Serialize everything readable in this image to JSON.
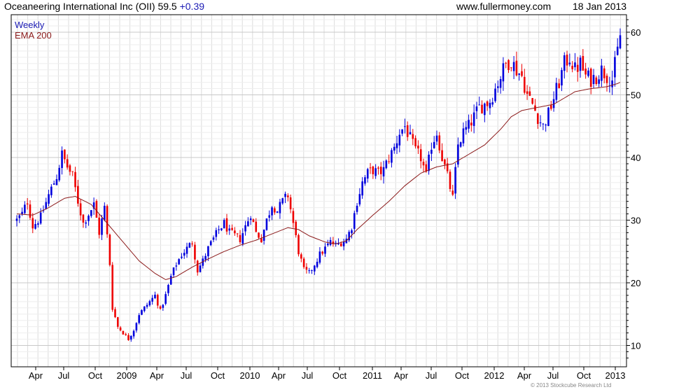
{
  "header": {
    "name": "Oceaneering International Inc (OII)",
    "price": "59.5",
    "change": "+0.39",
    "site": "www.fullermoney.com",
    "date": "18 Jan 2013"
  },
  "legend": {
    "weekly": "Weekly",
    "ema": "EMA 200"
  },
  "copyright": "© 2013 Stockcube Research Ltd",
  "colors": {
    "up": "#0000dd",
    "down": "#ee0000",
    "ema": "#8b1a1a",
    "grid": "#dcdcdc",
    "plot_border": "#000000"
  },
  "chart_data": {
    "type": "candlestick",
    "frequency": "weekly",
    "ylim": [
      7,
      62
    ],
    "y_ticks": [
      10,
      20,
      30,
      40,
      50,
      60
    ],
    "x_labels": [
      "Apr",
      "Jul",
      "Oct",
      "2009",
      "Apr",
      "Jul",
      "Oct",
      "2010",
      "Apr",
      "Jul",
      "Oct",
      "2011",
      "Apr",
      "Jul",
      "Oct",
      "2012",
      "Apr",
      "Jul",
      "Oct",
      "2013"
    ],
    "grid": true,
    "legend_position": "top-left",
    "close_anchors": [
      [
        0,
        30
      ],
      [
        2,
        31
      ],
      [
        4,
        33
      ],
      [
        6,
        29
      ],
      [
        9,
        30.5
      ],
      [
        12,
        34
      ],
      [
        15,
        37
      ],
      [
        17,
        40.5
      ],
      [
        19,
        38.5
      ],
      [
        21,
        37
      ],
      [
        23,
        33
      ],
      [
        25,
        29.5
      ],
      [
        27,
        31
      ],
      [
        29,
        32.5
      ],
      [
        31,
        28
      ],
      [
        33,
        32
      ],
      [
        35,
        23
      ],
      [
        36,
        16
      ],
      [
        38,
        13
      ],
      [
        40,
        12
      ],
      [
        42,
        11
      ],
      [
        44,
        12.5
      ],
      [
        46,
        15
      ],
      [
        48,
        16
      ],
      [
        50,
        17
      ],
      [
        52,
        18
      ],
      [
        54,
        15.5
      ],
      [
        56,
        18
      ],
      [
        58,
        21
      ],
      [
        60,
        23
      ],
      [
        62,
        24.5
      ],
      [
        64,
        25.5
      ],
      [
        66,
        26.5
      ],
      [
        68,
        22
      ],
      [
        70,
        23.5
      ],
      [
        72,
        25.5
      ],
      [
        74,
        27
      ],
      [
        76,
        28.5
      ],
      [
        78,
        29.5
      ],
      [
        80,
        28
      ],
      [
        82,
        27.5
      ],
      [
        84,
        27
      ],
      [
        86,
        29
      ],
      [
        88,
        31
      ],
      [
        90,
        28
      ],
      [
        92,
        27
      ],
      [
        94,
        30
      ],
      [
        96,
        32.5
      ],
      [
        98,
        31.5
      ],
      [
        100,
        33
      ],
      [
        102,
        34
      ],
      [
        104,
        29.5
      ],
      [
        106,
        25
      ],
      [
        108,
        22
      ],
      [
        110,
        21.5
      ],
      [
        112,
        23
      ],
      [
        114,
        24.5
      ],
      [
        116,
        25.5
      ],
      [
        118,
        26.5
      ],
      [
        120,
        26
      ],
      [
        122,
        26.5
      ],
      [
        124,
        27
      ],
      [
        126,
        29
      ],
      [
        128,
        33
      ],
      [
        130,
        36
      ],
      [
        132,
        37.5
      ],
      [
        134,
        38
      ],
      [
        136,
        37.5
      ],
      [
        138,
        38
      ],
      [
        140,
        40
      ],
      [
        142,
        41.5
      ],
      [
        144,
        44
      ],
      [
        146,
        45
      ],
      [
        148,
        43
      ],
      [
        150,
        41
      ],
      [
        152,
        40
      ],
      [
        154,
        37
      ],
      [
        156,
        42
      ],
      [
        158,
        44
      ],
      [
        160,
        40
      ],
      [
        162,
        37
      ],
      [
        164,
        33.5
      ],
      [
        166,
        42
      ],
      [
        168,
        44
      ],
      [
        170,
        45
      ],
      [
        172,
        46.5
      ],
      [
        174,
        48
      ],
      [
        176,
        48.5
      ],
      [
        178,
        49
      ],
      [
        180,
        51
      ],
      [
        182,
        53
      ],
      [
        184,
        55
      ],
      [
        186,
        55.5
      ],
      [
        188,
        54
      ],
      [
        190,
        53
      ],
      [
        192,
        50
      ],
      [
        194,
        48.5
      ],
      [
        196,
        46.5
      ],
      [
        198,
        45
      ],
      [
        200,
        47
      ],
      [
        202,
        49.5
      ],
      [
        204,
        52
      ],
      [
        206,
        55
      ],
      [
        208,
        56
      ],
      [
        210,
        54
      ],
      [
        212,
        55
      ],
      [
        214,
        53
      ],
      [
        216,
        52.5
      ],
      [
        218,
        53
      ],
      [
        220,
        54
      ],
      [
        222,
        53
      ],
      [
        224,
        52.5
      ],
      [
        226,
        57
      ],
      [
        227,
        59.5
      ]
    ],
    "ema200_anchors": [
      [
        0,
        31
      ],
      [
        6,
        30.8
      ],
      [
        12,
        32
      ],
      [
        18,
        33.5
      ],
      [
        22,
        33.8
      ],
      [
        28,
        32.5
      ],
      [
        34,
        29.5
      ],
      [
        40,
        26.5
      ],
      [
        46,
        23.5
      ],
      [
        52,
        21.5
      ],
      [
        56,
        20.5
      ],
      [
        60,
        21
      ],
      [
        66,
        22.5
      ],
      [
        72,
        23.8
      ],
      [
        78,
        25
      ],
      [
        84,
        26
      ],
      [
        90,
        26.8
      ],
      [
        96,
        27.8
      ],
      [
        102,
        28.8
      ],
      [
        106,
        28.5
      ],
      [
        110,
        27.5
      ],
      [
        116,
        26.5
      ],
      [
        120,
        26.2
      ],
      [
        124,
        26.7
      ],
      [
        128,
        28.5
      ],
      [
        134,
        30.8
      ],
      [
        140,
        33
      ],
      [
        146,
        35.5
      ],
      [
        152,
        37.5
      ],
      [
        158,
        38.5
      ],
      [
        164,
        39
      ],
      [
        170,
        40.5
      ],
      [
        176,
        42
      ],
      [
        182,
        44.5
      ],
      [
        186,
        46.5
      ],
      [
        190,
        47.5
      ],
      [
        196,
        48
      ],
      [
        202,
        48.5
      ],
      [
        206,
        49.5
      ],
      [
        210,
        50.5
      ],
      [
        216,
        51
      ],
      [
        222,
        51.3
      ],
      [
        226,
        51.8
      ],
      [
        227,
        52
      ]
    ]
  }
}
